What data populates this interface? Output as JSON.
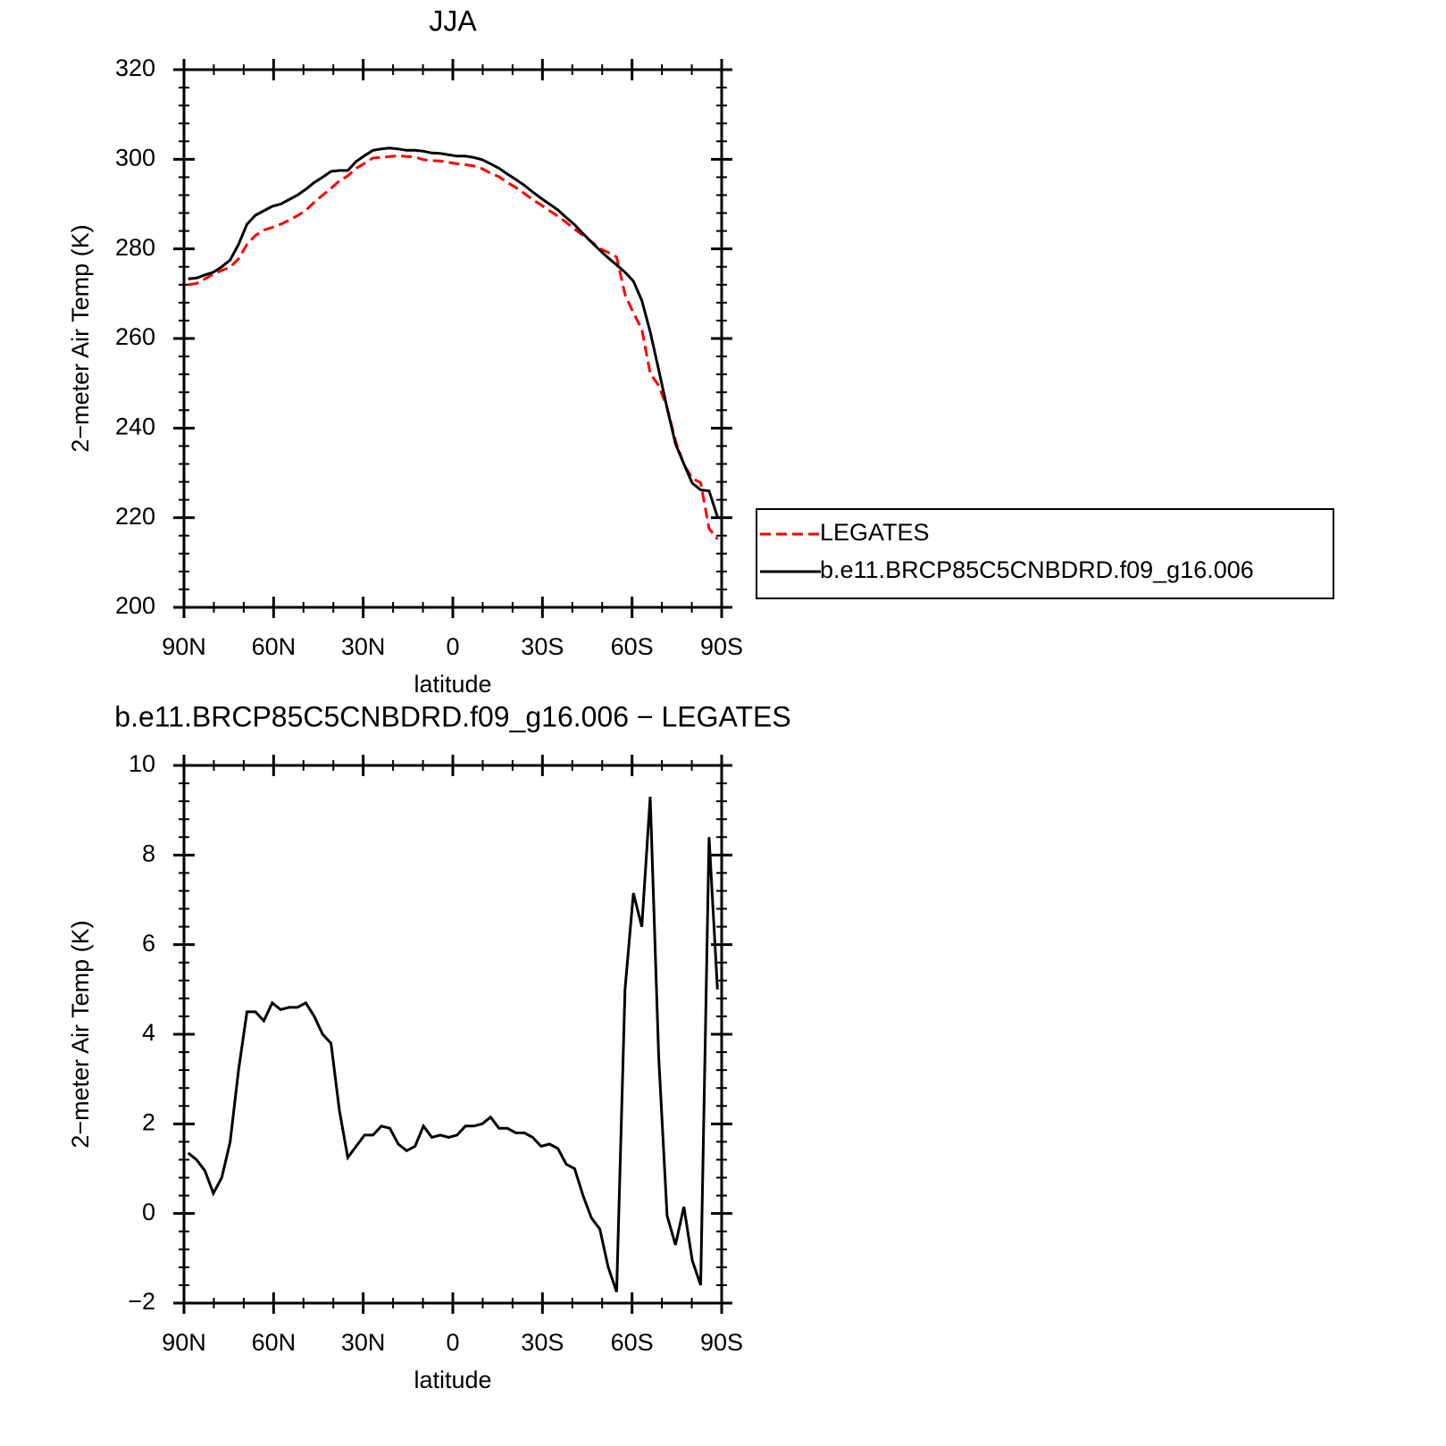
{
  "chart_data": [
    {
      "type": "line",
      "title": "JJA",
      "xlabel": "latitude",
      "ylabel": "2−meter Air Temp (K)",
      "x": [
        88.59,
        85.78,
        82.97,
        80.16,
        77.34,
        74.53,
        71.72,
        68.91,
        66.09,
        63.28,
        60.47,
        57.66,
        54.84,
        52.03,
        49.22,
        46.41,
        43.59,
        40.78,
        37.97,
        35.16,
        32.34,
        29.53,
        26.72,
        23.91,
        21.09,
        18.28,
        15.47,
        12.66,
        9.84,
        7.03,
        4.22,
        1.41,
        -1.41,
        -4.22,
        -7.03,
        -9.84,
        -12.66,
        -15.47,
        -18.28,
        -21.09,
        -23.91,
        -26.72,
        -29.53,
        -32.34,
        -35.16,
        -37.97,
        -40.78,
        -43.59,
        -46.41,
        -49.22,
        -52.03,
        -54.84,
        -57.66,
        -60.47,
        -63.28,
        -66.09,
        -68.91,
        -71.72,
        -74.53,
        -77.34,
        -80.16,
        -82.97,
        -85.78,
        -88.59
      ],
      "series": [
        {
          "name": "LEGATES",
          "color": "#ff0000",
          "linestyle": "dashed",
          "values": [
            272.0,
            272.3,
            273.3,
            274.4,
            275.2,
            275.9,
            277.8,
            281.0,
            283.0,
            284.2,
            284.8,
            285.5,
            286.4,
            287.4,
            288.6,
            290.4,
            292.0,
            293.5,
            295.2,
            296.3,
            298.0,
            299.1,
            300.3,
            300.4,
            300.6,
            300.8,
            300.6,
            300.5,
            299.9,
            299.7,
            299.6,
            299.3,
            299.0,
            298.8,
            298.5,
            297.9,
            296.9,
            296.1,
            294.8,
            293.7,
            292.4,
            291.0,
            289.8,
            288.5,
            287.3,
            285.9,
            284.4,
            283.0,
            281.6,
            280.1,
            279.2,
            278.2,
            269.8,
            265.7,
            262.1,
            252.2,
            249.5,
            244.6,
            237.2,
            231.9,
            228.8,
            227.8,
            217.6,
            215.2
          ]
        },
        {
          "name": "b.e11.BRCP85C5CNBDRD.f09_g16.006",
          "color": "#000000",
          "linestyle": "solid",
          "values": [
            273.3,
            273.5,
            274.2,
            274.8,
            276.0,
            277.5,
            281.0,
            285.5,
            287.5,
            288.5,
            289.5,
            290.0,
            291.0,
            292.0,
            293.3,
            294.8,
            296.0,
            297.3,
            297.5,
            297.5,
            299.5,
            300.8,
            302.0,
            302.3,
            302.5,
            302.3,
            302.0,
            302.0,
            301.8,
            301.4,
            301.3,
            301.0,
            300.7,
            300.7,
            300.4,
            299.9,
            299.0,
            298.0,
            296.7,
            295.5,
            294.2,
            292.7,
            291.3,
            290.0,
            288.7,
            287.0,
            285.4,
            283.4,
            281.5,
            279.7,
            278.0,
            276.4,
            274.8,
            272.8,
            268.5,
            261.5,
            253.0,
            244.5,
            236.5,
            232.0,
            227.7,
            226.2,
            226.0,
            220.2
          ]
        }
      ],
      "xlim": [
        90,
        -90
      ],
      "xticks": [
        {
          "value": 90,
          "label": "90N"
        },
        {
          "value": 60,
          "label": "60N"
        },
        {
          "value": 30,
          "label": "30N"
        },
        0,
        {
          "value": -30,
          "label": "30S"
        },
        {
          "value": -60,
          "label": "60S"
        },
        {
          "value": -90,
          "label": "90S"
        }
      ],
      "ylim": [
        200,
        320
      ],
      "yticks": [
        200,
        220,
        240,
        260,
        280,
        300,
        320
      ],
      "legend": "right"
    },
    {
      "type": "line",
      "title": "b.e11.BRCP85C5CNBDRD.f09_g16.006 − LEGATES",
      "xlabel": "latitude",
      "ylabel": "2−meter Air Temp (K)",
      "x": [
        88.59,
        85.78,
        82.97,
        80.16,
        77.34,
        74.53,
        71.72,
        68.91,
        66.09,
        63.28,
        60.47,
        57.66,
        54.84,
        52.03,
        49.22,
        46.41,
        43.59,
        40.78,
        37.97,
        35.16,
        32.34,
        29.53,
        26.72,
        23.91,
        21.09,
        18.28,
        15.47,
        12.66,
        9.84,
        7.03,
        4.22,
        1.41,
        -1.41,
        -4.22,
        -7.03,
        -9.84,
        -12.66,
        -15.47,
        -18.28,
        -21.09,
        -23.91,
        -26.72,
        -29.53,
        -32.34,
        -35.16,
        -37.97,
        -40.78,
        -43.59,
        -46.41,
        -49.22,
        -52.03,
        -54.84,
        -57.66,
        -60.47,
        -63.28,
        -66.09,
        -68.91,
        -71.72,
        -74.53,
        -77.34,
        -80.16,
        -82.97,
        -85.78,
        -88.59
      ],
      "series": [
        {
          "color": "#000000",
          "linestyle": "solid",
          "values": [
            1.35,
            1.2,
            0.95,
            0.45,
            0.8,
            1.6,
            3.2,
            4.5,
            4.5,
            4.3,
            4.7,
            4.55,
            4.6,
            4.6,
            4.7,
            4.4,
            4.0,
            3.8,
            2.3,
            1.25,
            1.5,
            1.75,
            1.75,
            1.95,
            1.9,
            1.55,
            1.4,
            1.5,
            1.95,
            1.7,
            1.75,
            1.7,
            1.75,
            1.95,
            1.95,
            2.0,
            2.15,
            1.9,
            1.9,
            1.8,
            1.8,
            1.7,
            1.5,
            1.55,
            1.45,
            1.1,
            1.0,
            0.4,
            -0.1,
            -0.35,
            -1.2,
            -1.75,
            5.0,
            7.15,
            6.4,
            9.3,
            3.5,
            -0.05,
            -0.7,
            0.15,
            -1.05,
            -1.6,
            8.4,
            5.0
          ]
        }
      ],
      "xlim": [
        90,
        -90
      ],
      "xticks": [
        {
          "value": 90,
          "label": "90N"
        },
        {
          "value": 60,
          "label": "60N"
        },
        {
          "value": 30,
          "label": "30N"
        },
        0,
        {
          "value": -30,
          "label": "30S"
        },
        {
          "value": -60,
          "label": "60S"
        },
        {
          "value": -90,
          "label": "90S"
        }
      ],
      "ylim": [
        -2,
        10
      ],
      "yticks": [
        {
          "value": -2,
          "label": "−2"
        },
        0,
        2,
        4,
        6,
        8,
        10
      ]
    }
  ]
}
